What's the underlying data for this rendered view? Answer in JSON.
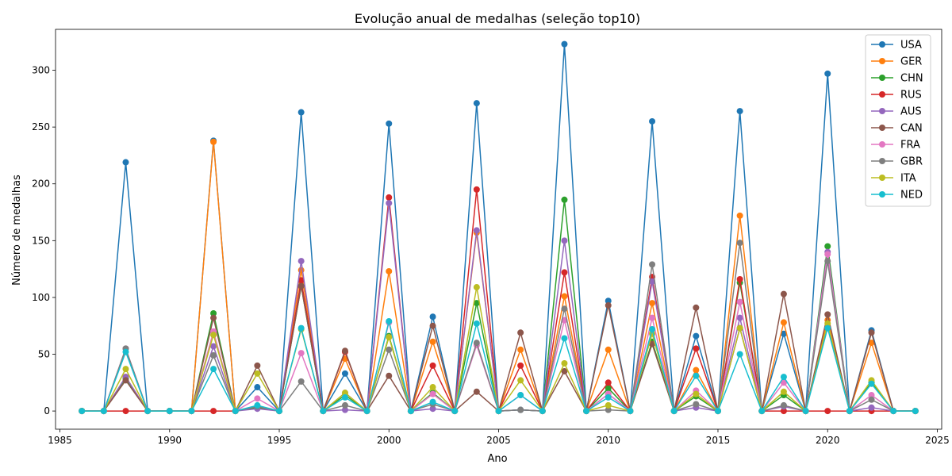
{
  "chart_data": {
    "type": "line",
    "title": "Evolução anual de medalhas (seleção top10)",
    "xlabel": "Ano",
    "ylabel": "Número de medalhas",
    "xlim": [
      1984.8,
      2025.2
    ],
    "ylim": [
      -16,
      336
    ],
    "xticks": [
      1985,
      1990,
      1995,
      2000,
      2005,
      2010,
      2015,
      2020,
      2025
    ],
    "yticks": [
      0,
      50,
      100,
      150,
      200,
      250,
      300
    ],
    "grid": false,
    "legend_position": "top-right",
    "x": [
      1986,
      1987,
      1988,
      1989,
      1990,
      1991,
      1992,
      1993,
      1994,
      1995,
      1996,
      1997,
      1998,
      1999,
      2000,
      2001,
      2002,
      2003,
      2004,
      2005,
      2006,
      2007,
      2008,
      2009,
      2010,
      2011,
      2012,
      2013,
      2014,
      2015,
      2016,
      2017,
      2018,
      2019,
      2020,
      2021,
      2022,
      2023,
      2024
    ],
    "series": [
      {
        "name": "USA",
        "color": "#1f77b4",
        "values": [
          0,
          0,
          219,
          0,
          0,
          0,
          238,
          0,
          21,
          0,
          263,
          0,
          33,
          0,
          253,
          0,
          83,
          0,
          271,
          0,
          1,
          0,
          323,
          0,
          97,
          0,
          255,
          0,
          66,
          0,
          264,
          0,
          68,
          0,
          297,
          0,
          71,
          0,
          0
        ]
      },
      {
        "name": "GER",
        "color": "#ff7f0e",
        "values": [
          0,
          0,
          30,
          0,
          0,
          0,
          237,
          0,
          4,
          0,
          124,
          0,
          46,
          0,
          123,
          0,
          61,
          0,
          157,
          0,
          54,
          0,
          101,
          0,
          54,
          0,
          95,
          0,
          36,
          0,
          172,
          0,
          78,
          0,
          80,
          0,
          60,
          0,
          0
        ]
      },
      {
        "name": "CHN",
        "color": "#2ca02c",
        "values": [
          0,
          0,
          29,
          0,
          0,
          0,
          86,
          0,
          3,
          0,
          110,
          0,
          14,
          0,
          66,
          0,
          16,
          0,
          95,
          0,
          1,
          0,
          186,
          0,
          20,
          0,
          61,
          0,
          13,
          0,
          113,
          0,
          14,
          0,
          145,
          0,
          25,
          0,
          0
        ]
      },
      {
        "name": "RUS",
        "color": "#d62728",
        "values": [
          0,
          0,
          0,
          0,
          0,
          0,
          0,
          0,
          4,
          0,
          115,
          0,
          52,
          0,
          188,
          0,
          40,
          0,
          195,
          0,
          40,
          0,
          122,
          0,
          25,
          0,
          118,
          0,
          55,
          0,
          116,
          0,
          0,
          0,
          0,
          0,
          0,
          0,
          0
        ]
      },
      {
        "name": "AUS",
        "color": "#9467bd",
        "values": [
          0,
          0,
          30,
          0,
          0,
          0,
          57,
          0,
          2,
          0,
          132,
          0,
          1,
          0,
          183,
          0,
          2,
          0,
          159,
          0,
          1,
          0,
          150,
          0,
          15,
          0,
          114,
          0,
          3,
          0,
          82,
          0,
          4,
          0,
          140,
          0,
          3,
          0,
          0
        ]
      },
      {
        "name": "CAN",
        "color": "#8c564b",
        "values": [
          0,
          0,
          27,
          0,
          0,
          0,
          82,
          0,
          40,
          0,
          110,
          0,
          53,
          0,
          31,
          0,
          75,
          0,
          17,
          0,
          69,
          0,
          35,
          0,
          93,
          0,
          59,
          0,
          91,
          0,
          73,
          0,
          103,
          0,
          85,
          0,
          69,
          0,
          0
        ]
      },
      {
        "name": "FRA",
        "color": "#e377c2",
        "values": [
          0,
          0,
          55,
          0,
          0,
          0,
          70,
          0,
          11,
          0,
          51,
          0,
          16,
          0,
          78,
          0,
          15,
          0,
          58,
          0,
          14,
          0,
          80,
          0,
          15,
          0,
          82,
          0,
          18,
          0,
          96,
          0,
          25,
          0,
          138,
          0,
          14,
          0,
          0
        ]
      },
      {
        "name": "GBR",
        "color": "#7f7f7f",
        "values": [
          0,
          0,
          55,
          0,
          0,
          0,
          49,
          0,
          4,
          0,
          26,
          0,
          5,
          0,
          54,
          0,
          6,
          0,
          60,
          0,
          1,
          0,
          90,
          0,
          1,
          0,
          129,
          0,
          6,
          0,
          148,
          0,
          5,
          0,
          132,
          0,
          10,
          0,
          0
        ]
      },
      {
        "name": "ITA",
        "color": "#bcbd22",
        "values": [
          0,
          0,
          37,
          0,
          0,
          0,
          67,
          0,
          33,
          0,
          72,
          0,
          16,
          0,
          65,
          0,
          21,
          0,
          109,
          0,
          27,
          0,
          42,
          0,
          5,
          0,
          68,
          0,
          15,
          0,
          73,
          0,
          17,
          0,
          77,
          0,
          27,
          0,
          0
        ]
      },
      {
        "name": "NED",
        "color": "#17becf",
        "values": [
          0,
          0,
          52,
          0,
          0,
          0,
          37,
          0,
          5,
          0,
          73,
          0,
          12,
          0,
          79,
          0,
          8,
          0,
          77,
          0,
          14,
          0,
          64,
          0,
          12,
          0,
          72,
          0,
          31,
          0,
          50,
          0,
          30,
          0,
          73,
          0,
          24,
          0,
          0
        ]
      }
    ]
  }
}
